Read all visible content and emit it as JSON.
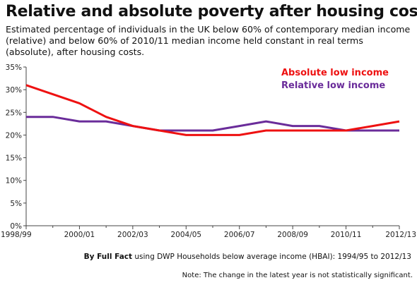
{
  "title": "Relative and absolute poverty after housing costs",
  "subtitle": "Estimated percentage of individuals in the UK below 60% of contemporary median income (relative) and below 60% of 2010/11 median income held constant in real terms (absolute), after housing costs.",
  "source": {
    "prefix": "By Full Fact",
    "text": " using DWP Households below average income (HBAI): 1994/95 to 2012/13"
  },
  "note": "Note: The change in the latest year is not statistically  significant.",
  "colors": {
    "absolute": "#ee1111",
    "relative": "#6a2c9a",
    "axis": "#444444"
  },
  "chart_data": {
    "type": "line",
    "x": [
      "1998/99",
      "1999/00",
      "2000/01",
      "2001/02",
      "2002/03",
      "2003/04",
      "2004/05",
      "2005/06",
      "2006/07",
      "2007/08",
      "2008/09",
      "2009/10",
      "2010/11",
      "2011/12",
      "2012/13"
    ],
    "x_tick_labels": [
      "1998/99",
      "2000/01",
      "2002/03",
      "2004/05",
      "2006/07",
      "2008/09",
      "2010/11",
      "2012/13"
    ],
    "y_tick_labels": [
      "0%",
      "5%",
      "10%",
      "15%",
      "20%",
      "25%",
      "30%",
      "35%"
    ],
    "ylim": [
      0,
      35
    ],
    "y_ticks": [
      0,
      5,
      10,
      15,
      20,
      25,
      30,
      35
    ],
    "grid": false,
    "legend_position": "top-right",
    "series": [
      {
        "name": "Absolute low income",
        "color": "#ee1111",
        "values": [
          31,
          29,
          27,
          24,
          22,
          21,
          20,
          20,
          20,
          21,
          21,
          21,
          21,
          22,
          23
        ]
      },
      {
        "name": "Relative low income",
        "color": "#6a2c9a",
        "values": [
          24,
          24,
          23,
          23,
          22,
          21,
          21,
          21,
          22,
          23,
          22,
          22,
          21,
          21,
          21
        ]
      }
    ]
  }
}
